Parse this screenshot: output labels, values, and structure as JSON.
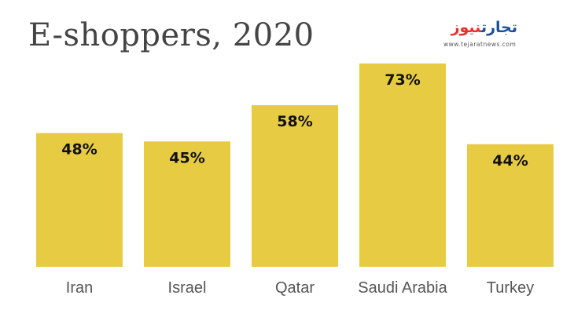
{
  "logo": {
    "part_a": "تجارت",
    "part_b": "نیوز",
    "url": "www.tejaratnews.com"
  },
  "colors": {
    "bar": "#e7cb43",
    "title": "#444444",
    "logo_blue": "#1c4f9a",
    "logo_red": "#e0332c"
  },
  "chart_data": {
    "type": "bar",
    "title": "E-shoppers, 2020",
    "categories": [
      "Iran",
      "Israel",
      "Qatar",
      "Saudi Arabia",
      "Turkey"
    ],
    "values": [
      48,
      45,
      58,
      73,
      44
    ],
    "data_labels": [
      "48%",
      "45%",
      "58%",
      "73%",
      "44%"
    ],
    "xlabel": "",
    "ylabel": "",
    "ylim": [
      0,
      100
    ],
    "grid": false,
    "legend": "none"
  }
}
